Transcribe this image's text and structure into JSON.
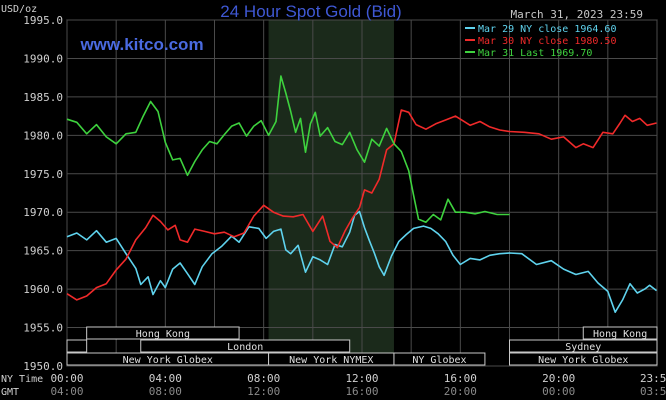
{
  "chart_data": {
    "type": "line",
    "title": "24 Hour Spot Gold (Bid)",
    "date": "March 31, 2023 23:59",
    "watermark": "www.kitco.com",
    "ylabel": "USD/oz",
    "ylim": [
      1950,
      1995
    ],
    "ytick_labels": [
      "1995.0",
      "1990.0",
      "1985.0",
      "1980.0",
      "1975.0",
      "1970.0",
      "1965.0",
      "1960.0",
      "1955.0",
      "1950.0"
    ],
    "ytick_values": [
      1995,
      1990,
      1985,
      1980,
      1975,
      1970,
      1965,
      1960,
      1955,
      1950
    ],
    "xlim": [
      0,
      24
    ],
    "x_row_labels": {
      "ny": "NY Time",
      "gmt": "GMT"
    },
    "xticks_ny": [
      "00:00",
      "04:00",
      "08:00",
      "12:00",
      "16:00",
      "20:00",
      "23:59"
    ],
    "xticks_gmt": [
      "04:00",
      "08:00",
      "12:00",
      "16:00",
      "20:00",
      "00:00",
      "03:59"
    ],
    "xtick_hours": [
      0,
      4,
      8,
      12,
      16,
      20,
      23.98
    ],
    "shaded_ny_session": [
      8.2,
      13.3
    ],
    "grid": true,
    "legend_position": "top-right",
    "series": [
      {
        "name": "Mar 29 NY close 1964.60",
        "color": "#5fd3ee",
        "points": [
          [
            0,
            1966.8
          ],
          [
            0.4,
            1967.3
          ],
          [
            0.8,
            1966.4
          ],
          [
            1.2,
            1967.6
          ],
          [
            1.6,
            1966.1
          ],
          [
            2.0,
            1966.6
          ],
          [
            2.4,
            1964.6
          ],
          [
            2.8,
            1962.7
          ],
          [
            3.0,
            1960.6
          ],
          [
            3.3,
            1961.6
          ],
          [
            3.5,
            1959.3
          ],
          [
            3.8,
            1961.1
          ],
          [
            4.0,
            1960.2
          ],
          [
            4.3,
            1962.6
          ],
          [
            4.6,
            1963.4
          ],
          [
            4.9,
            1962.0
          ],
          [
            5.2,
            1960.6
          ],
          [
            5.5,
            1962.9
          ],
          [
            5.9,
            1964.6
          ],
          [
            6.3,
            1965.6
          ],
          [
            6.7,
            1966.9
          ],
          [
            7.0,
            1966.1
          ],
          [
            7.4,
            1968.1
          ],
          [
            7.8,
            1967.9
          ],
          [
            8.1,
            1966.6
          ],
          [
            8.4,
            1967.5
          ],
          [
            8.7,
            1967.8
          ],
          [
            8.9,
            1965.1
          ],
          [
            9.1,
            1964.6
          ],
          [
            9.4,
            1965.7
          ],
          [
            9.7,
            1962.2
          ],
          [
            10.0,
            1964.2
          ],
          [
            10.3,
            1963.8
          ],
          [
            10.6,
            1963.2
          ],
          [
            10.9,
            1965.8
          ],
          [
            11.2,
            1965.5
          ],
          [
            11.5,
            1967.4
          ],
          [
            11.7,
            1969.6
          ],
          [
            11.9,
            1970.1
          ],
          [
            12.1,
            1968.0
          ],
          [
            12.3,
            1966.3
          ],
          [
            12.5,
            1964.7
          ],
          [
            12.7,
            1962.9
          ],
          [
            12.9,
            1961.8
          ],
          [
            13.2,
            1964.3
          ],
          [
            13.5,
            1966.2
          ],
          [
            13.8,
            1967.1
          ],
          [
            14.1,
            1967.9
          ],
          [
            14.5,
            1968.2
          ],
          [
            14.8,
            1967.9
          ],
          [
            15.1,
            1967.2
          ],
          [
            15.4,
            1966.2
          ],
          [
            15.7,
            1964.4
          ],
          [
            16.0,
            1963.2
          ],
          [
            16.4,
            1964.0
          ],
          [
            16.8,
            1963.8
          ],
          [
            17.2,
            1964.4
          ],
          [
            17.6,
            1964.6
          ],
          [
            18.0,
            1964.7
          ],
          [
            18.5,
            1964.6
          ],
          [
            19.1,
            1963.2
          ],
          [
            19.7,
            1963.7
          ],
          [
            20.2,
            1962.6
          ],
          [
            20.7,
            1961.9
          ],
          [
            21.2,
            1962.3
          ],
          [
            21.6,
            1960.8
          ],
          [
            22.0,
            1959.7
          ],
          [
            22.3,
            1957.0
          ],
          [
            22.6,
            1958.6
          ],
          [
            22.9,
            1960.7
          ],
          [
            23.2,
            1959.5
          ],
          [
            23.5,
            1960.0
          ],
          [
            23.7,
            1960.5
          ],
          [
            23.98,
            1959.8
          ]
        ]
      },
      {
        "name": "Mar 30 NY close 1980.50",
        "color": "#f02a2a",
        "points": [
          [
            0,
            1959.4
          ],
          [
            0.4,
            1958.6
          ],
          [
            0.8,
            1959.1
          ],
          [
            1.2,
            1960.2
          ],
          [
            1.6,
            1960.7
          ],
          [
            2.0,
            1962.5
          ],
          [
            2.4,
            1963.9
          ],
          [
            2.8,
            1966.4
          ],
          [
            3.2,
            1968.0
          ],
          [
            3.5,
            1969.6
          ],
          [
            3.8,
            1968.8
          ],
          [
            4.1,
            1967.7
          ],
          [
            4.4,
            1968.3
          ],
          [
            4.6,
            1966.4
          ],
          [
            4.9,
            1966.1
          ],
          [
            5.2,
            1967.8
          ],
          [
            5.6,
            1967.5
          ],
          [
            6.0,
            1967.2
          ],
          [
            6.4,
            1967.4
          ],
          [
            6.8,
            1966.8
          ],
          [
            7.2,
            1967.3
          ],
          [
            7.6,
            1969.5
          ],
          [
            8.0,
            1970.9
          ],
          [
            8.4,
            1970.0
          ],
          [
            8.8,
            1969.5
          ],
          [
            9.2,
            1969.4
          ],
          [
            9.6,
            1969.7
          ],
          [
            10.0,
            1967.5
          ],
          [
            10.4,
            1969.5
          ],
          [
            10.7,
            1966.2
          ],
          [
            11.0,
            1965.4
          ],
          [
            11.3,
            1967.5
          ],
          [
            11.6,
            1969.2
          ],
          [
            11.9,
            1970.6
          ],
          [
            12.1,
            1972.9
          ],
          [
            12.4,
            1972.5
          ],
          [
            12.7,
            1974.3
          ],
          [
            13.0,
            1978.1
          ],
          [
            13.3,
            1978.9
          ],
          [
            13.6,
            1983.3
          ],
          [
            13.9,
            1983.0
          ],
          [
            14.2,
            1981.4
          ],
          [
            14.6,
            1980.8
          ],
          [
            15.0,
            1981.5
          ],
          [
            15.4,
            1982.0
          ],
          [
            15.8,
            1982.5
          ],
          [
            16.1,
            1981.9
          ],
          [
            16.4,
            1981.3
          ],
          [
            16.8,
            1981.8
          ],
          [
            17.2,
            1981.1
          ],
          [
            17.6,
            1980.7
          ],
          [
            18.0,
            1980.5
          ],
          [
            18.6,
            1980.4
          ],
          [
            19.2,
            1980.2
          ],
          [
            19.7,
            1979.5
          ],
          [
            20.2,
            1979.8
          ],
          [
            20.7,
            1978.4
          ],
          [
            21.0,
            1978.9
          ],
          [
            21.4,
            1978.4
          ],
          [
            21.8,
            1980.4
          ],
          [
            22.2,
            1980.2
          ],
          [
            22.5,
            1981.6
          ],
          [
            22.7,
            1982.6
          ],
          [
            23.0,
            1981.8
          ],
          [
            23.3,
            1982.2
          ],
          [
            23.6,
            1981.3
          ],
          [
            23.98,
            1981.6
          ]
        ]
      },
      {
        "name": "Mar 31 Last 1969.70",
        "color": "#3ed23e",
        "points": [
          [
            0,
            1982.1
          ],
          [
            0.4,
            1981.7
          ],
          [
            0.8,
            1980.2
          ],
          [
            1.2,
            1981.4
          ],
          [
            1.6,
            1979.8
          ],
          [
            2.0,
            1978.9
          ],
          [
            2.4,
            1980.2
          ],
          [
            2.8,
            1980.4
          ],
          [
            3.1,
            1982.5
          ],
          [
            3.4,
            1984.4
          ],
          [
            3.7,
            1983.1
          ],
          [
            4.0,
            1979.1
          ],
          [
            4.3,
            1976.8
          ],
          [
            4.6,
            1977.0
          ],
          [
            4.9,
            1974.8
          ],
          [
            5.2,
            1976.6
          ],
          [
            5.5,
            1978.1
          ],
          [
            5.8,
            1979.2
          ],
          [
            6.1,
            1978.9
          ],
          [
            6.4,
            1980.1
          ],
          [
            6.7,
            1981.2
          ],
          [
            7.0,
            1981.6
          ],
          [
            7.3,
            1979.9
          ],
          [
            7.6,
            1981.2
          ],
          [
            7.9,
            1981.9
          ],
          [
            8.2,
            1980.0
          ],
          [
            8.5,
            1981.8
          ],
          [
            8.7,
            1987.7
          ],
          [
            8.9,
            1985.5
          ],
          [
            9.1,
            1983.1
          ],
          [
            9.3,
            1980.4
          ],
          [
            9.5,
            1982.2
          ],
          [
            9.7,
            1977.8
          ],
          [
            9.9,
            1981.5
          ],
          [
            10.1,
            1983.0
          ],
          [
            10.3,
            1979.9
          ],
          [
            10.6,
            1981.0
          ],
          [
            10.9,
            1979.2
          ],
          [
            11.2,
            1978.8
          ],
          [
            11.5,
            1980.4
          ],
          [
            11.8,
            1978.1
          ],
          [
            12.1,
            1976.5
          ],
          [
            12.4,
            1979.5
          ],
          [
            12.7,
            1978.6
          ],
          [
            13.0,
            1980.9
          ],
          [
            13.3,
            1978.9
          ],
          [
            13.6,
            1977.9
          ],
          [
            13.9,
            1975.4
          ],
          [
            14.1,
            1972.2
          ],
          [
            14.3,
            1969.1
          ],
          [
            14.6,
            1968.7
          ],
          [
            14.9,
            1969.7
          ],
          [
            15.2,
            1969.0
          ],
          [
            15.5,
            1971.7
          ],
          [
            15.8,
            1970.0
          ],
          [
            16.2,
            1970.0
          ],
          [
            16.6,
            1969.8
          ],
          [
            17.0,
            1970.1
          ],
          [
            17.5,
            1969.7
          ],
          [
            18.0,
            1969.7
          ],
          [
            18.0,
            1969.7
          ]
        ]
      }
    ],
    "sessions": [
      {
        "name": "Hong Kong",
        "start": 0.8,
        "end": 7.0,
        "row": 0
      },
      {
        "name": "Hong Kong",
        "start": 21.0,
        "end": 24.0,
        "row": 0
      },
      {
        "name": "",
        "start": 0.0,
        "end": 0.8,
        "row": 1
      },
      {
        "name": "London",
        "start": 3.0,
        "end": 11.5,
        "row": 1
      },
      {
        "name": "Sydney",
        "start": 18.0,
        "end": 24.0,
        "row": 1
      },
      {
        "name": "New York Globex",
        "start": 0.0,
        "end": 8.2,
        "row": 2
      },
      {
        "name": "New York NYMEX",
        "start": 8.2,
        "end": 13.3,
        "row": 2
      },
      {
        "name": "NY Globex",
        "start": 13.3,
        "end": 17.0,
        "row": 2
      },
      {
        "name": "New York Globex",
        "start": 18.0,
        "end": 24.0,
        "row": 2
      }
    ]
  }
}
